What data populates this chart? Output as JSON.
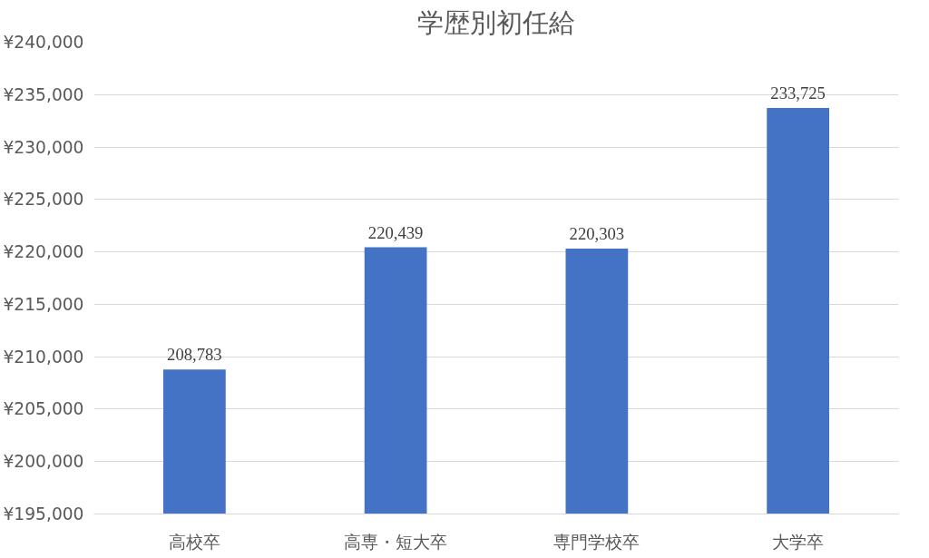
{
  "chart_data": {
    "type": "bar",
    "title": "学歴別初任給",
    "categories": [
      "高校卒",
      "高専・短大卒",
      "専門学校卒",
      "大学卒"
    ],
    "values": [
      208783,
      220439,
      220303,
      233725
    ],
    "value_labels": [
      "208,783",
      "220,439",
      "220,303",
      "233,725"
    ],
    "color": "#4472c4",
    "ylim": [
      195000,
      240000
    ],
    "yticks": [
      {
        "value": 195000,
        "label": "¥195,000"
      },
      {
        "value": 200000,
        "label": "¥200,000"
      },
      {
        "value": 205000,
        "label": "¥205,000"
      },
      {
        "value": 210000,
        "label": "¥210,000"
      },
      {
        "value": 215000,
        "label": "¥215,000"
      },
      {
        "value": 220000,
        "label": "¥220,000"
      },
      {
        "value": 225000,
        "label": "¥225,000"
      },
      {
        "value": 230000,
        "label": "¥230,000"
      },
      {
        "value": 235000,
        "label": "¥235,000"
      },
      {
        "value": 240000,
        "label": "¥240,000"
      }
    ],
    "grid": "y"
  }
}
